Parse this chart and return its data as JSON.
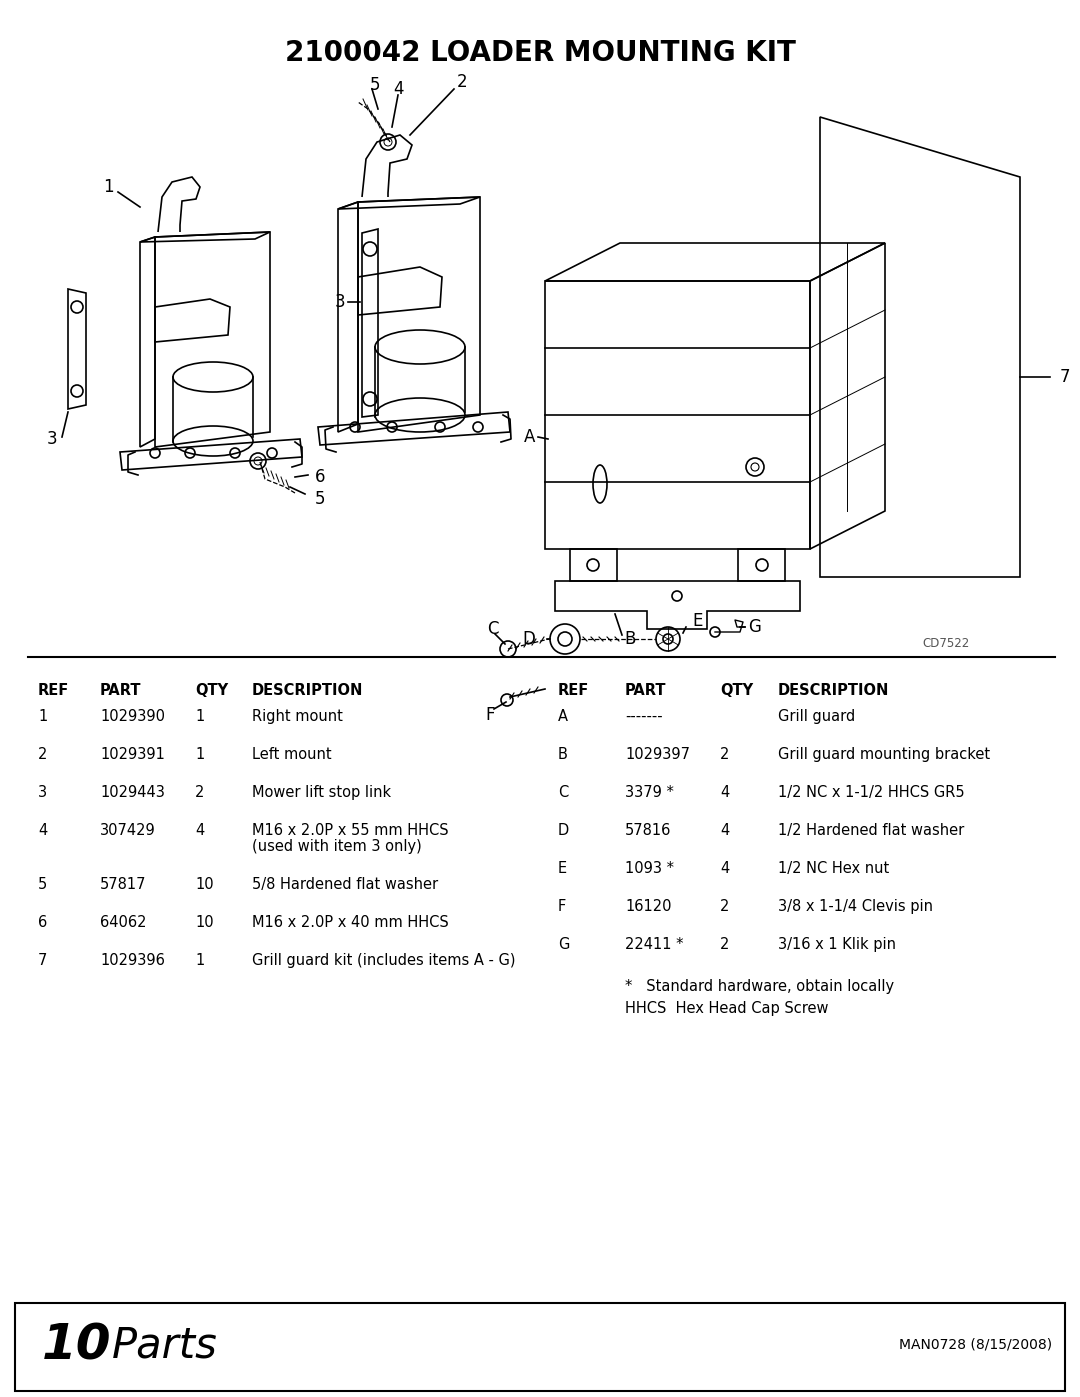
{
  "title": "2100042 LOADER MOUNTING KIT",
  "title_fontsize": 20,
  "title_fontweight": "bold",
  "bg_color": "#ffffff",
  "diagram_code": "CD7522",
  "parts_left": [
    {
      "ref": "1",
      "part": "1029390",
      "qty": "1",
      "desc": "Right mount",
      "desc2": ""
    },
    {
      "ref": "2",
      "part": "1029391",
      "qty": "1",
      "desc": "Left mount",
      "desc2": ""
    },
    {
      "ref": "3",
      "part": "1029443",
      "qty": "2",
      "desc": "Mower lift stop link",
      "desc2": ""
    },
    {
      "ref": "4",
      "part": "307429",
      "qty": "4",
      "desc": "M16 x 2.0P x 55 mm HHCS",
      "desc2": "(used with item 3 only)"
    },
    {
      "ref": "5",
      "part": "57817",
      "qty": "10",
      "desc": "5/8 Hardened flat washer",
      "desc2": ""
    },
    {
      "ref": "6",
      "part": "64062",
      "qty": "10",
      "desc": "M16 x 2.0P x 40 mm HHCS",
      "desc2": ""
    },
    {
      "ref": "7",
      "part": "1029396",
      "qty": "1",
      "desc": "Grill guard kit (includes items A - G)",
      "desc2": ""
    }
  ],
  "parts_right": [
    {
      "ref": "A",
      "part": "-------",
      "qty": "",
      "desc": "Grill guard"
    },
    {
      "ref": "B",
      "part": "1029397",
      "qty": "2",
      "desc": "Grill guard mounting bracket"
    },
    {
      "ref": "C",
      "part": "3379 *",
      "qty": "4",
      "desc": "1/2 NC x 1-1/2 HHCS GR5"
    },
    {
      "ref": "D",
      "part": "57816",
      "qty": "4",
      "desc": "1/2 Hardened flat washer"
    },
    {
      "ref": "E",
      "part": "1093 *",
      "qty": "4",
      "desc": "1/2 NC Hex nut"
    },
    {
      "ref": "F",
      "part": "16120",
      "qty": "2",
      "desc": "3/8 x 1-1/4 Clevis pin"
    },
    {
      "ref": "G",
      "part": "22411 *",
      "qty": "2",
      "desc": "3/16 x 1 Klik pin"
    }
  ],
  "footnote1": "*   Standard hardware, obtain locally",
  "footnote2": "HHCS  Hex Head Cap Screw",
  "footer_right": "MAN0728 (8/15/2008)",
  "col_headers_ref": "REF",
  "col_headers_part": "PART",
  "col_headers_qty": "QTY",
  "col_headers_desc": "DESCRIPTION"
}
